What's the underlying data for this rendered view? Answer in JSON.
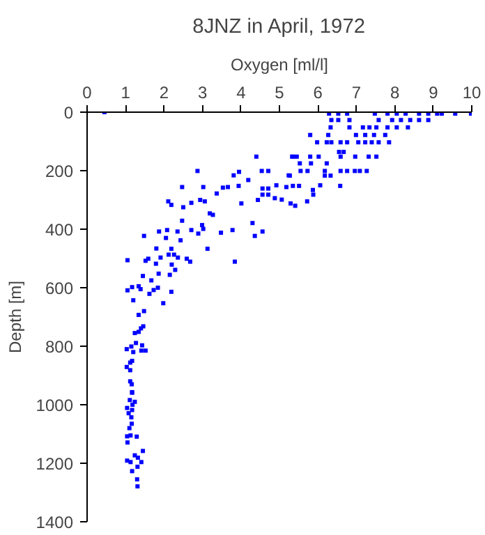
{
  "chart_data": {
    "type": "scatter",
    "title": "8JNZ in April, 1972",
    "xlabel": "Oxygen [ml/l]",
    "ylabel": "Depth [m]",
    "xlim": [
      0,
      10
    ],
    "xticks": [
      0,
      1,
      2,
      3,
      4,
      5,
      6,
      7,
      8,
      9,
      10
    ],
    "ylim": [
      1400,
      0
    ],
    "yticks": [
      0,
      200,
      400,
      600,
      800,
      1000,
      1200,
      1400
    ],
    "grid": false,
    "marker": "square",
    "series": [
      {
        "color": "#0000ff",
        "x": [
          0.45,
          6.29,
          6.53,
          6.76,
          7.48,
          7.81,
          8.05,
          8.28,
          8.63,
          8.87,
          9.1,
          9.22,
          9.57,
          9.98,
          6.35,
          6.53,
          6.82,
          7.58,
          7.93,
          8.16,
          8.4,
          8.63,
          8.87,
          6.33,
          6.82,
          7.17,
          7.34,
          7.52,
          7.81,
          8.05,
          8.34,
          5.8,
          6.27,
          6.99,
          7.23,
          7.46,
          7.75,
          5.98,
          6.23,
          6.35,
          6.59,
          6.76,
          7.05,
          7.23,
          7.4,
          7.58,
          7.85,
          6.55,
          6.67,
          5.36,
          5.45,
          5.8,
          6.02,
          6.59,
          6.97,
          7.32,
          7.52,
          5.53,
          5.82,
          6.23,
          4.54,
          4.71,
          5.55,
          5.73,
          6.18,
          6.59,
          6.76,
          6.96,
          7.09,
          7.27,
          5.27,
          6.18,
          6.33,
          4.56,
          4.71,
          5.88,
          2.87,
          3.81,
          3.95,
          4.19,
          4.4,
          5.33,
          5.24,
          2.47,
          3.02,
          3.37,
          3.53,
          3.66,
          3.94,
          2.11,
          2.19,
          2.5,
          2.71,
          2.94,
          3.06,
          4.01,
          4.44,
          4.56,
          4.71,
          4.88,
          5.06,
          5.29,
          5.41,
          5.72,
          4.92,
          5.18,
          5.35,
          5.51,
          5.87,
          6.06,
          6.58,
          3.19,
          3.27,
          2.47,
          2.99,
          3.02,
          4.3,
          4.56,
          4.36,
          3.78,
          3.48,
          2.71,
          2.89,
          2.35,
          2.08,
          1.87,
          1.48,
          2.05,
          2.43,
          1.8,
          2.19,
          3.13,
          2.12,
          2.26,
          2.36,
          2.59,
          2.68,
          3.84,
          1.05,
          1.59,
          1.52,
          1.91,
          1.79,
          2.2,
          2.29,
          2.15,
          1.86,
          1.45,
          1.67,
          1.84,
          1.73,
          1.39,
          1.34,
          1.17,
          1.05,
          1.62,
          2.19,
          1.98,
          1.2,
          1.34,
          1.48,
          1.46,
          1.4,
          1.34,
          1.24,
          1.27,
          1.43,
          1.15,
          1.03,
          1.2,
          1.41,
          1.52,
          1.17,
          1.12,
          1.03,
          1.12,
          1.12,
          1.16,
          1.17,
          1.17,
          1.11,
          1.24,
          1.18,
          1.04,
          1.17,
          1.08,
          1.15,
          1.16,
          1.1,
          1.04,
          1.13,
          1.29,
          1.05,
          1.45,
          1.24,
          1.32,
          1.04,
          1.13,
          1.41,
          1.31,
          1.17,
          1.3,
          1.31
        ],
        "values": [
          0,
          5,
          5,
          5,
          5,
          5,
          5,
          5,
          5,
          5,
          5,
          5,
          5,
          5,
          27,
          27,
          27,
          27,
          27,
          27,
          27,
          27,
          27,
          52,
          52,
          52,
          52,
          52,
          52,
          52,
          52,
          78,
          78,
          78,
          78,
          78,
          78,
          103,
          103,
          103,
          103,
          103,
          103,
          103,
          103,
          103,
          103,
          136,
          136,
          152,
          152,
          152,
          152,
          152,
          152,
          152,
          152,
          175,
          175,
          175,
          201,
          201,
          201,
          201,
          201,
          201,
          201,
          201,
          201,
          201,
          217,
          217,
          217,
          282,
          282,
          282,
          201,
          216,
          204,
          232,
          152,
          152,
          216,
          256,
          256,
          278,
          258,
          256,
          252,
          305,
          317,
          325,
          310,
          300,
          305,
          312,
          300,
          261,
          261,
          294,
          299,
          312,
          320,
          305,
          250,
          256,
          252,
          252,
          266,
          250,
          252,
          346,
          351,
          371,
          386,
          399,
          379,
          408,
          423,
          403,
          412,
          403,
          415,
          408,
          403,
          408,
          423,
          430,
          438,
          466,
          467,
          467,
          487,
          487,
          497,
          501,
          511,
          511,
          506,
          501,
          508,
          497,
          518,
          521,
          539,
          556,
          552,
          560,
          575,
          600,
          608,
          605,
          595,
          598,
          609,
          621,
          614,
          653,
          643,
          693,
          680,
          732,
          739,
          751,
          755,
          789,
          797,
          801,
          810,
          820,
          815,
          815,
          850,
          856,
          871,
          882,
          920,
          930,
          957,
          959,
          984,
          990,
          1000,
          1011,
          1018,
          1029,
          1043,
          1065,
          1080,
          1108,
          1105,
          1109,
          1129,
          1158,
          1173,
          1181,
          1191,
          1196,
          1196,
          1212,
          1227,
          1255,
          1279
        ]
      }
    ]
  }
}
